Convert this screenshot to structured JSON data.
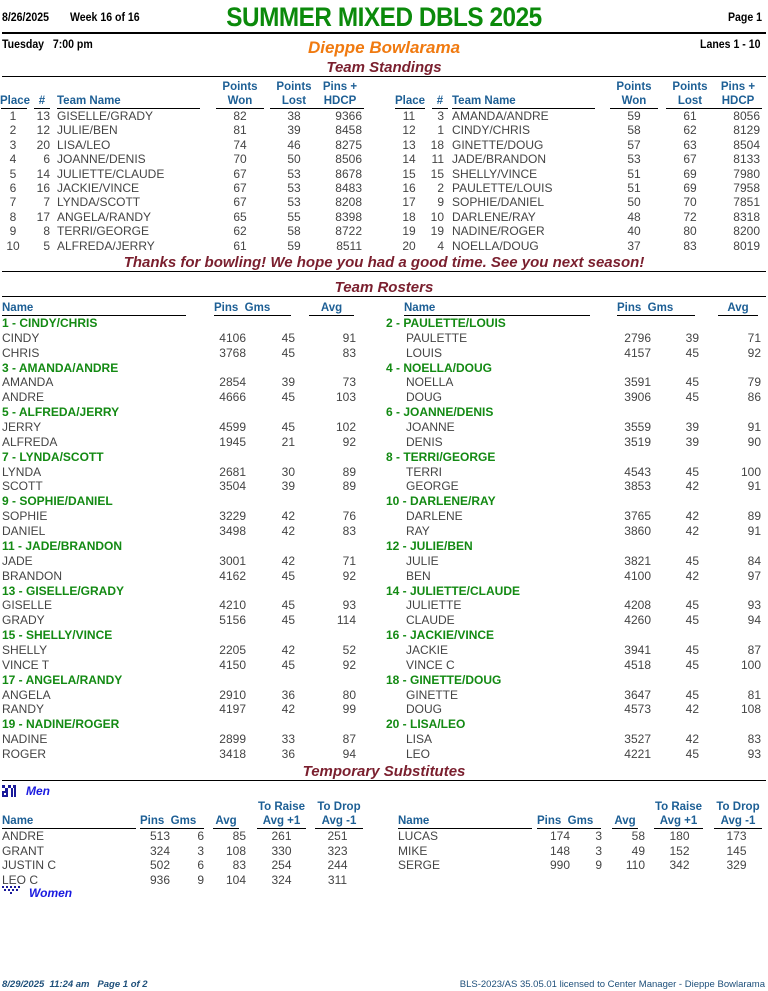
{
  "header": {
    "date": "8/26/2025",
    "week": "Week 16 of 16",
    "title": "SUMMER MIXED DBLS 2025",
    "page": "Page 1",
    "day_time": "Tuesday   7:00 pm",
    "center": "Dieppe Bowlarama",
    "lanes": "Lanes 1 - 10",
    "title_color": "#0b8a0b",
    "center_color": "#f07a10",
    "section_color": "#7a1f2e",
    "column_header_color": "#1d5f95"
  },
  "standings": {
    "title": "Team Standings",
    "headers": {
      "place": "Place",
      "num": "#",
      "team": "Team Name",
      "won_1": "Points",
      "won_2": "Won",
      "lost_1": "Points",
      "lost_2": "Lost",
      "hdcp_1": "Pins +",
      "hdcp_2": "HDCP"
    },
    "rows": [
      {
        "place": "1",
        "num": "13",
        "team": "GISELLE/GRADY",
        "won": "82",
        "lost": "38",
        "hdcp": "9366"
      },
      {
        "place": "2",
        "num": "12",
        "team": "JULIE/BEN",
        "won": "81",
        "lost": "39",
        "hdcp": "8458"
      },
      {
        "place": "3",
        "num": "20",
        "team": "LISA/LEO",
        "won": "74",
        "lost": "46",
        "hdcp": "8275"
      },
      {
        "place": "4",
        "num": "6",
        "team": "JOANNE/DENIS",
        "won": "70",
        "lost": "50",
        "hdcp": "8506"
      },
      {
        "place": "5",
        "num": "14",
        "team": "JULIETTE/CLAUDE",
        "won": "67",
        "lost": "53",
        "hdcp": "8678"
      },
      {
        "place": "6",
        "num": "16",
        "team": "JACKIE/VINCE",
        "won": "67",
        "lost": "53",
        "hdcp": "8483"
      },
      {
        "place": "7",
        "num": "7",
        "team": "LYNDA/SCOTT",
        "won": "67",
        "lost": "53",
        "hdcp": "8208"
      },
      {
        "place": "8",
        "num": "17",
        "team": "ANGELA/RANDY",
        "won": "65",
        "lost": "55",
        "hdcp": "8398"
      },
      {
        "place": "9",
        "num": "8",
        "team": "TERRI/GEORGE",
        "won": "62",
        "lost": "58",
        "hdcp": "8722"
      },
      {
        "place": "10",
        "num": "5",
        "team": "ALFREDA/JERRY",
        "won": "61",
        "lost": "59",
        "hdcp": "8511"
      },
      {
        "place": "11",
        "num": "3",
        "team": "AMANDA/ANDRE",
        "won": "59",
        "lost": "61",
        "hdcp": "8056"
      },
      {
        "place": "12",
        "num": "1",
        "team": "CINDY/CHRIS",
        "won": "58",
        "lost": "62",
        "hdcp": "8129"
      },
      {
        "place": "13",
        "num": "18",
        "team": "GINETTE/DOUG",
        "won": "57",
        "lost": "63",
        "hdcp": "8504"
      },
      {
        "place": "14",
        "num": "11",
        "team": "JADE/BRANDON",
        "won": "53",
        "lost": "67",
        "hdcp": "8133"
      },
      {
        "place": "15",
        "num": "15",
        "team": "SHELLY/VINCE",
        "won": "51",
        "lost": "69",
        "hdcp": "7980"
      },
      {
        "place": "16",
        "num": "2",
        "team": "PAULETTE/LOUIS",
        "won": "51",
        "lost": "69",
        "hdcp": "7958"
      },
      {
        "place": "17",
        "num": "9",
        "team": "SOPHIE/DANIEL",
        "won": "50",
        "lost": "70",
        "hdcp": "7851"
      },
      {
        "place": "18",
        "num": "10",
        "team": "DARLENE/RAY",
        "won": "48",
        "lost": "72",
        "hdcp": "8318"
      },
      {
        "place": "19",
        "num": "19",
        "team": "NADINE/ROGER",
        "won": "40",
        "lost": "80",
        "hdcp": "8200"
      },
      {
        "place": "20",
        "num": "4",
        "team": "NOELLA/DOUG",
        "won": "37",
        "lost": "83",
        "hdcp": "8019"
      }
    ],
    "message": "Thanks for bowling! We hope you had a good time. See you next season!"
  },
  "rosters": {
    "title": "Team Rosters",
    "headers": {
      "name": "Name",
      "pins_gms": "Pins  Gms",
      "avg": "Avg"
    },
    "teams": [
      {
        "label": "1 - CINDY/CHRIS",
        "members": [
          {
            "name": "CINDY",
            "pins": "4106",
            "gms": "45",
            "avg": "91"
          },
          {
            "name": "CHRIS",
            "pins": "3768",
            "gms": "45",
            "avg": "83"
          }
        ]
      },
      {
        "label": "2 - PAULETTE/LOUIS",
        "members": [
          {
            "name": "PAULETTE",
            "pins": "2796",
            "gms": "39",
            "avg": "71"
          },
          {
            "name": "LOUIS",
            "pins": "4157",
            "gms": "45",
            "avg": "92"
          }
        ]
      },
      {
        "label": "3 - AMANDA/ANDRE",
        "members": [
          {
            "name": "AMANDA",
            "pins": "2854",
            "gms": "39",
            "avg": "73"
          },
          {
            "name": "ANDRE",
            "pins": "4666",
            "gms": "45",
            "avg": "103"
          }
        ]
      },
      {
        "label": "4 - NOELLA/DOUG",
        "members": [
          {
            "name": "NOELLA",
            "pins": "3591",
            "gms": "45",
            "avg": "79"
          },
          {
            "name": "DOUG",
            "pins": "3906",
            "gms": "45",
            "avg": "86"
          }
        ]
      },
      {
        "label": "5 - ALFREDA/JERRY",
        "members": [
          {
            "name": "JERRY",
            "pins": "4599",
            "gms": "45",
            "avg": "102"
          },
          {
            "name": "ALFREDA",
            "pins": "1945",
            "gms": "21",
            "avg": "92"
          }
        ]
      },
      {
        "label": "6 - JOANNE/DENIS",
        "members": [
          {
            "name": "JOANNE",
            "pins": "3559",
            "gms": "39",
            "avg": "91"
          },
          {
            "name": "DENIS",
            "pins": "3519",
            "gms": "39",
            "avg": "90"
          }
        ]
      },
      {
        "label": "7 - LYNDA/SCOTT",
        "members": [
          {
            "name": "LYNDA",
            "pins": "2681",
            "gms": "30",
            "avg": "89"
          },
          {
            "name": "SCOTT",
            "pins": "3504",
            "gms": "39",
            "avg": "89"
          }
        ]
      },
      {
        "label": "8 - TERRI/GEORGE",
        "members": [
          {
            "name": "TERRI",
            "pins": "4543",
            "gms": "45",
            "avg": "100"
          },
          {
            "name": "GEORGE",
            "pins": "3853",
            "gms": "42",
            "avg": "91"
          }
        ]
      },
      {
        "label": "9 - SOPHIE/DANIEL",
        "members": [
          {
            "name": "SOPHIE",
            "pins": "3229",
            "gms": "42",
            "avg": "76"
          },
          {
            "name": "DANIEL",
            "pins": "3498",
            "gms": "42",
            "avg": "83"
          }
        ]
      },
      {
        "label": "10 - DARLENE/RAY",
        "members": [
          {
            "name": "DARLENE",
            "pins": "3765",
            "gms": "42",
            "avg": "89"
          },
          {
            "name": "RAY",
            "pins": "3860",
            "gms": "42",
            "avg": "91"
          }
        ]
      },
      {
        "label": "11 - JADE/BRANDON",
        "members": [
          {
            "name": "JADE",
            "pins": "3001",
            "gms": "42",
            "avg": "71"
          },
          {
            "name": "BRANDON",
            "pins": "4162",
            "gms": "45",
            "avg": "92"
          }
        ]
      },
      {
        "label": "12 - JULIE/BEN",
        "members": [
          {
            "name": "JULIE",
            "pins": "3821",
            "gms": "45",
            "avg": "84"
          },
          {
            "name": "BEN",
            "pins": "4100",
            "gms": "42",
            "avg": "97"
          }
        ]
      },
      {
        "label": "13 - GISELLE/GRADY",
        "members": [
          {
            "name": "GISELLE",
            "pins": "4210",
            "gms": "45",
            "avg": "93"
          },
          {
            "name": "GRADY",
            "pins": "5156",
            "gms": "45",
            "avg": "114"
          }
        ]
      },
      {
        "label": "14 - JULIETTE/CLAUDE",
        "members": [
          {
            "name": "JULIETTE",
            "pins": "4208",
            "gms": "45",
            "avg": "93"
          },
          {
            "name": "CLAUDE",
            "pins": "4260",
            "gms": "45",
            "avg": "94"
          }
        ]
      },
      {
        "label": "15 - SHELLY/VINCE",
        "members": [
          {
            "name": "SHELLY",
            "pins": "2205",
            "gms": "42",
            "avg": "52"
          },
          {
            "name": "VINCE T",
            "pins": "4150",
            "gms": "45",
            "avg": "92"
          }
        ]
      },
      {
        "label": "16 - JACKIE/VINCE",
        "members": [
          {
            "name": "JACKIE",
            "pins": "3941",
            "gms": "45",
            "avg": "87"
          },
          {
            "name": "VINCE C",
            "pins": "4518",
            "gms": "45",
            "avg": "100"
          }
        ]
      },
      {
        "label": "17 - ANGELA/RANDY",
        "members": [
          {
            "name": "ANGELA",
            "pins": "2910",
            "gms": "36",
            "avg": "80"
          },
          {
            "name": "RANDY",
            "pins": "4197",
            "gms": "42",
            "avg": "99"
          }
        ]
      },
      {
        "label": "18 - GINETTE/DOUG",
        "members": [
          {
            "name": "GINETTE",
            "pins": "3647",
            "gms": "45",
            "avg": "81"
          },
          {
            "name": "DOUG",
            "pins": "4573",
            "gms": "42",
            "avg": "108"
          }
        ]
      },
      {
        "label": "19 - NADINE/ROGER",
        "members": [
          {
            "name": "NADINE",
            "pins": "2899",
            "gms": "33",
            "avg": "87"
          },
          {
            "name": "ROGER",
            "pins": "3418",
            "gms": "36",
            "avg": "94"
          }
        ]
      },
      {
        "label": "20 - LISA/LEO",
        "members": [
          {
            "name": "LISA",
            "pins": "3527",
            "gms": "42",
            "avg": "83"
          },
          {
            "name": "LEO",
            "pins": "4221",
            "gms": "45",
            "avg": "93"
          }
        ]
      }
    ]
  },
  "substitutes": {
    "title": "Temporary Substitutes",
    "men_label": "Men",
    "women_label": "Women",
    "men_icon": "men-checker-icon",
    "women_icon": "women-checker-icon",
    "headers": {
      "name": "Name",
      "pins_gms": "Pins  Gms",
      "avg": "Avg",
      "raise_1": "To Raise",
      "raise_2": "Avg +1",
      "drop_1": "To Drop",
      "drop_2": "Avg -1"
    },
    "men": [
      {
        "name": "ANDRE",
        "pins": "513",
        "gms": "6",
        "avg": "85",
        "raise": "261",
        "drop": "251"
      },
      {
        "name": "GRANT",
        "pins": "324",
        "gms": "3",
        "avg": "108",
        "raise": "330",
        "drop": "323"
      },
      {
        "name": "JUSTIN C",
        "pins": "502",
        "gms": "6",
        "avg": "83",
        "raise": "254",
        "drop": "244"
      },
      {
        "name": "LEO C",
        "pins": "936",
        "gms": "9",
        "avg": "104",
        "raise": "324",
        "drop": "311"
      },
      {
        "name": "LUCAS",
        "pins": "174",
        "gms": "3",
        "avg": "58",
        "raise": "180",
        "drop": "173"
      },
      {
        "name": "MIKE",
        "pins": "148",
        "gms": "3",
        "avg": "49",
        "raise": "152",
        "drop": "145"
      },
      {
        "name": "SERGE",
        "pins": "990",
        "gms": "9",
        "avg": "110",
        "raise": "342",
        "drop": "329"
      }
    ]
  },
  "footer": {
    "printed": "8/29/2025  11:24 am   Page 1 of 2",
    "license": "BLS-2023/AS 35.05.01 licensed to Center Manager - Dieppe Bowlarama"
  }
}
